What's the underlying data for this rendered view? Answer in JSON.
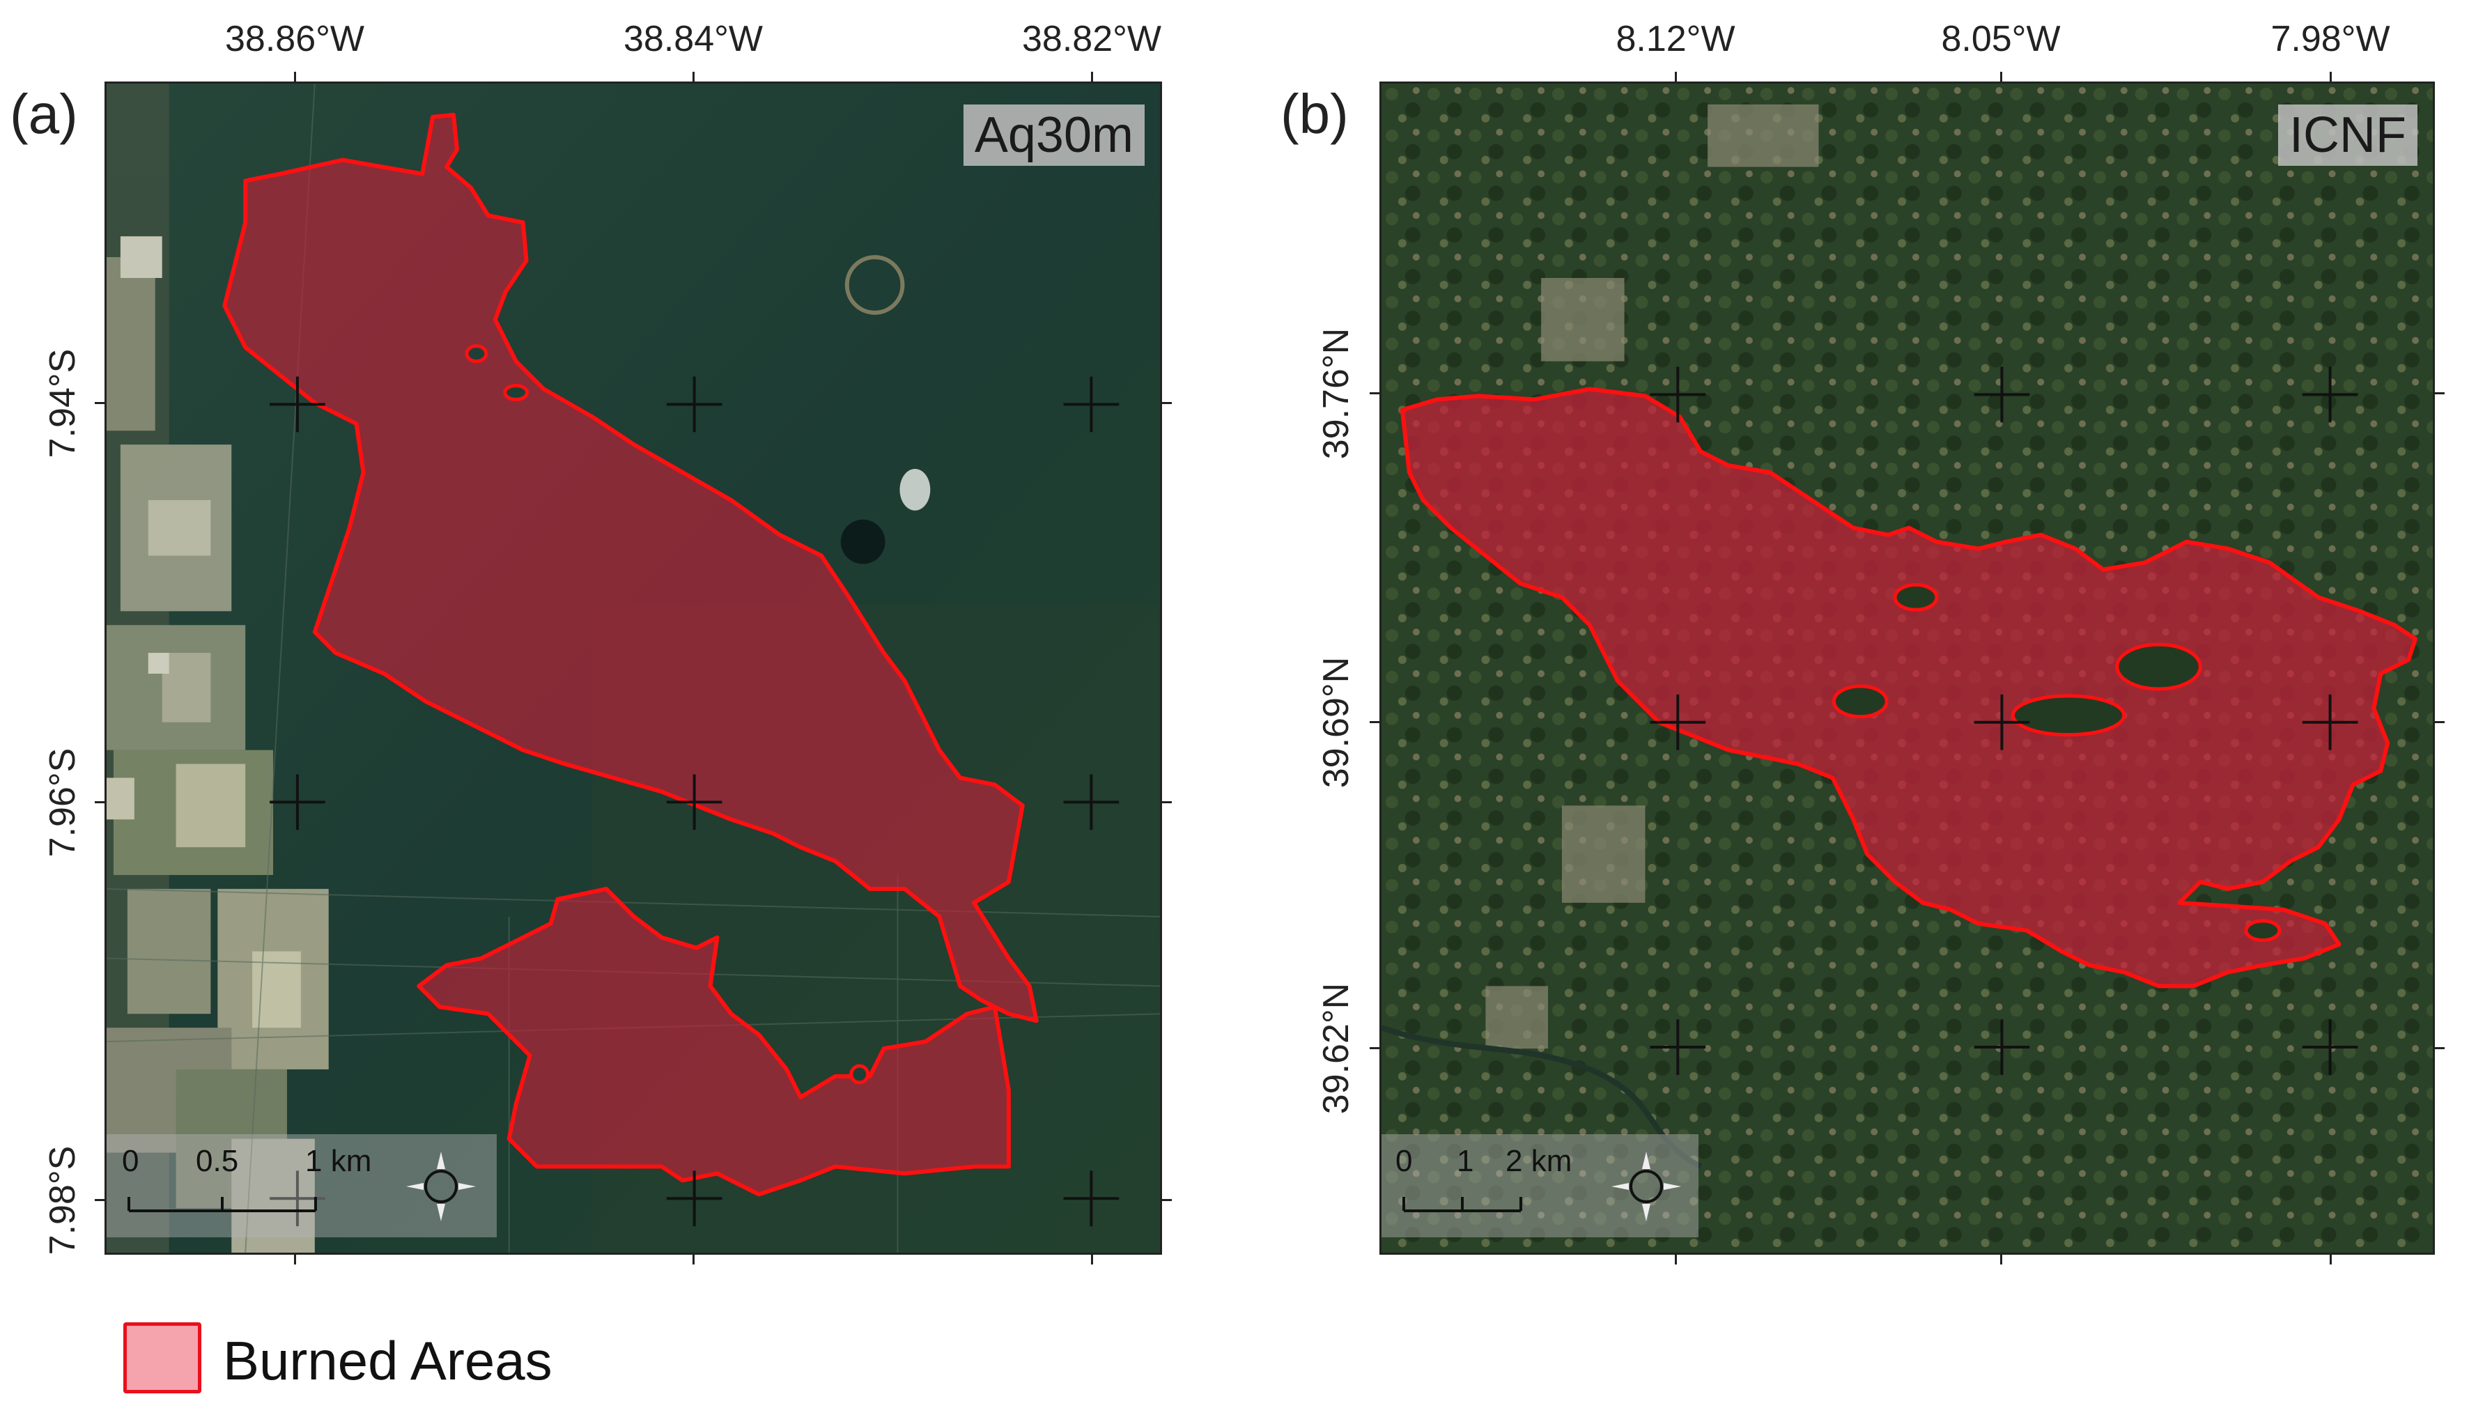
{
  "panels": [
    {
      "letter": "(a)",
      "badge": "Aq30m",
      "lon_labels": [
        "38.86°W",
        "38.84°W",
        "38.82°W"
      ],
      "lat_labels": [
        "7.94°S",
        "7.96°S",
        "7.98°S"
      ],
      "scale": {
        "zero": "0",
        "mid": "0.5",
        "end": "1 km"
      },
      "colors": {
        "background": "#1e3f35",
        "fields": "#a8a98a",
        "burn_fill": "#c8203a",
        "burn_outline": "#ff1010"
      }
    },
    {
      "letter": "(b)",
      "badge": "ICNF",
      "lon_labels": [
        "8.12°W",
        "8.05°W",
        "7.98°W"
      ],
      "lat_labels": [
        "39.76°N",
        "39.69°N",
        "39.62°N"
      ],
      "scale": {
        "zero": "0",
        "mid": "1",
        "end": "2 km"
      },
      "colors": {
        "background": "#233a22",
        "burn_fill": "#c8203a",
        "burn_outline": "#ff1010"
      }
    }
  ],
  "legend": {
    "label": "Burned Areas",
    "fill": "#f5a3ad",
    "outline": "#e8101c"
  },
  "icons": {
    "north_arrow": "compass-north-arrow-icon",
    "graticule": "crosshair-icon"
  }
}
